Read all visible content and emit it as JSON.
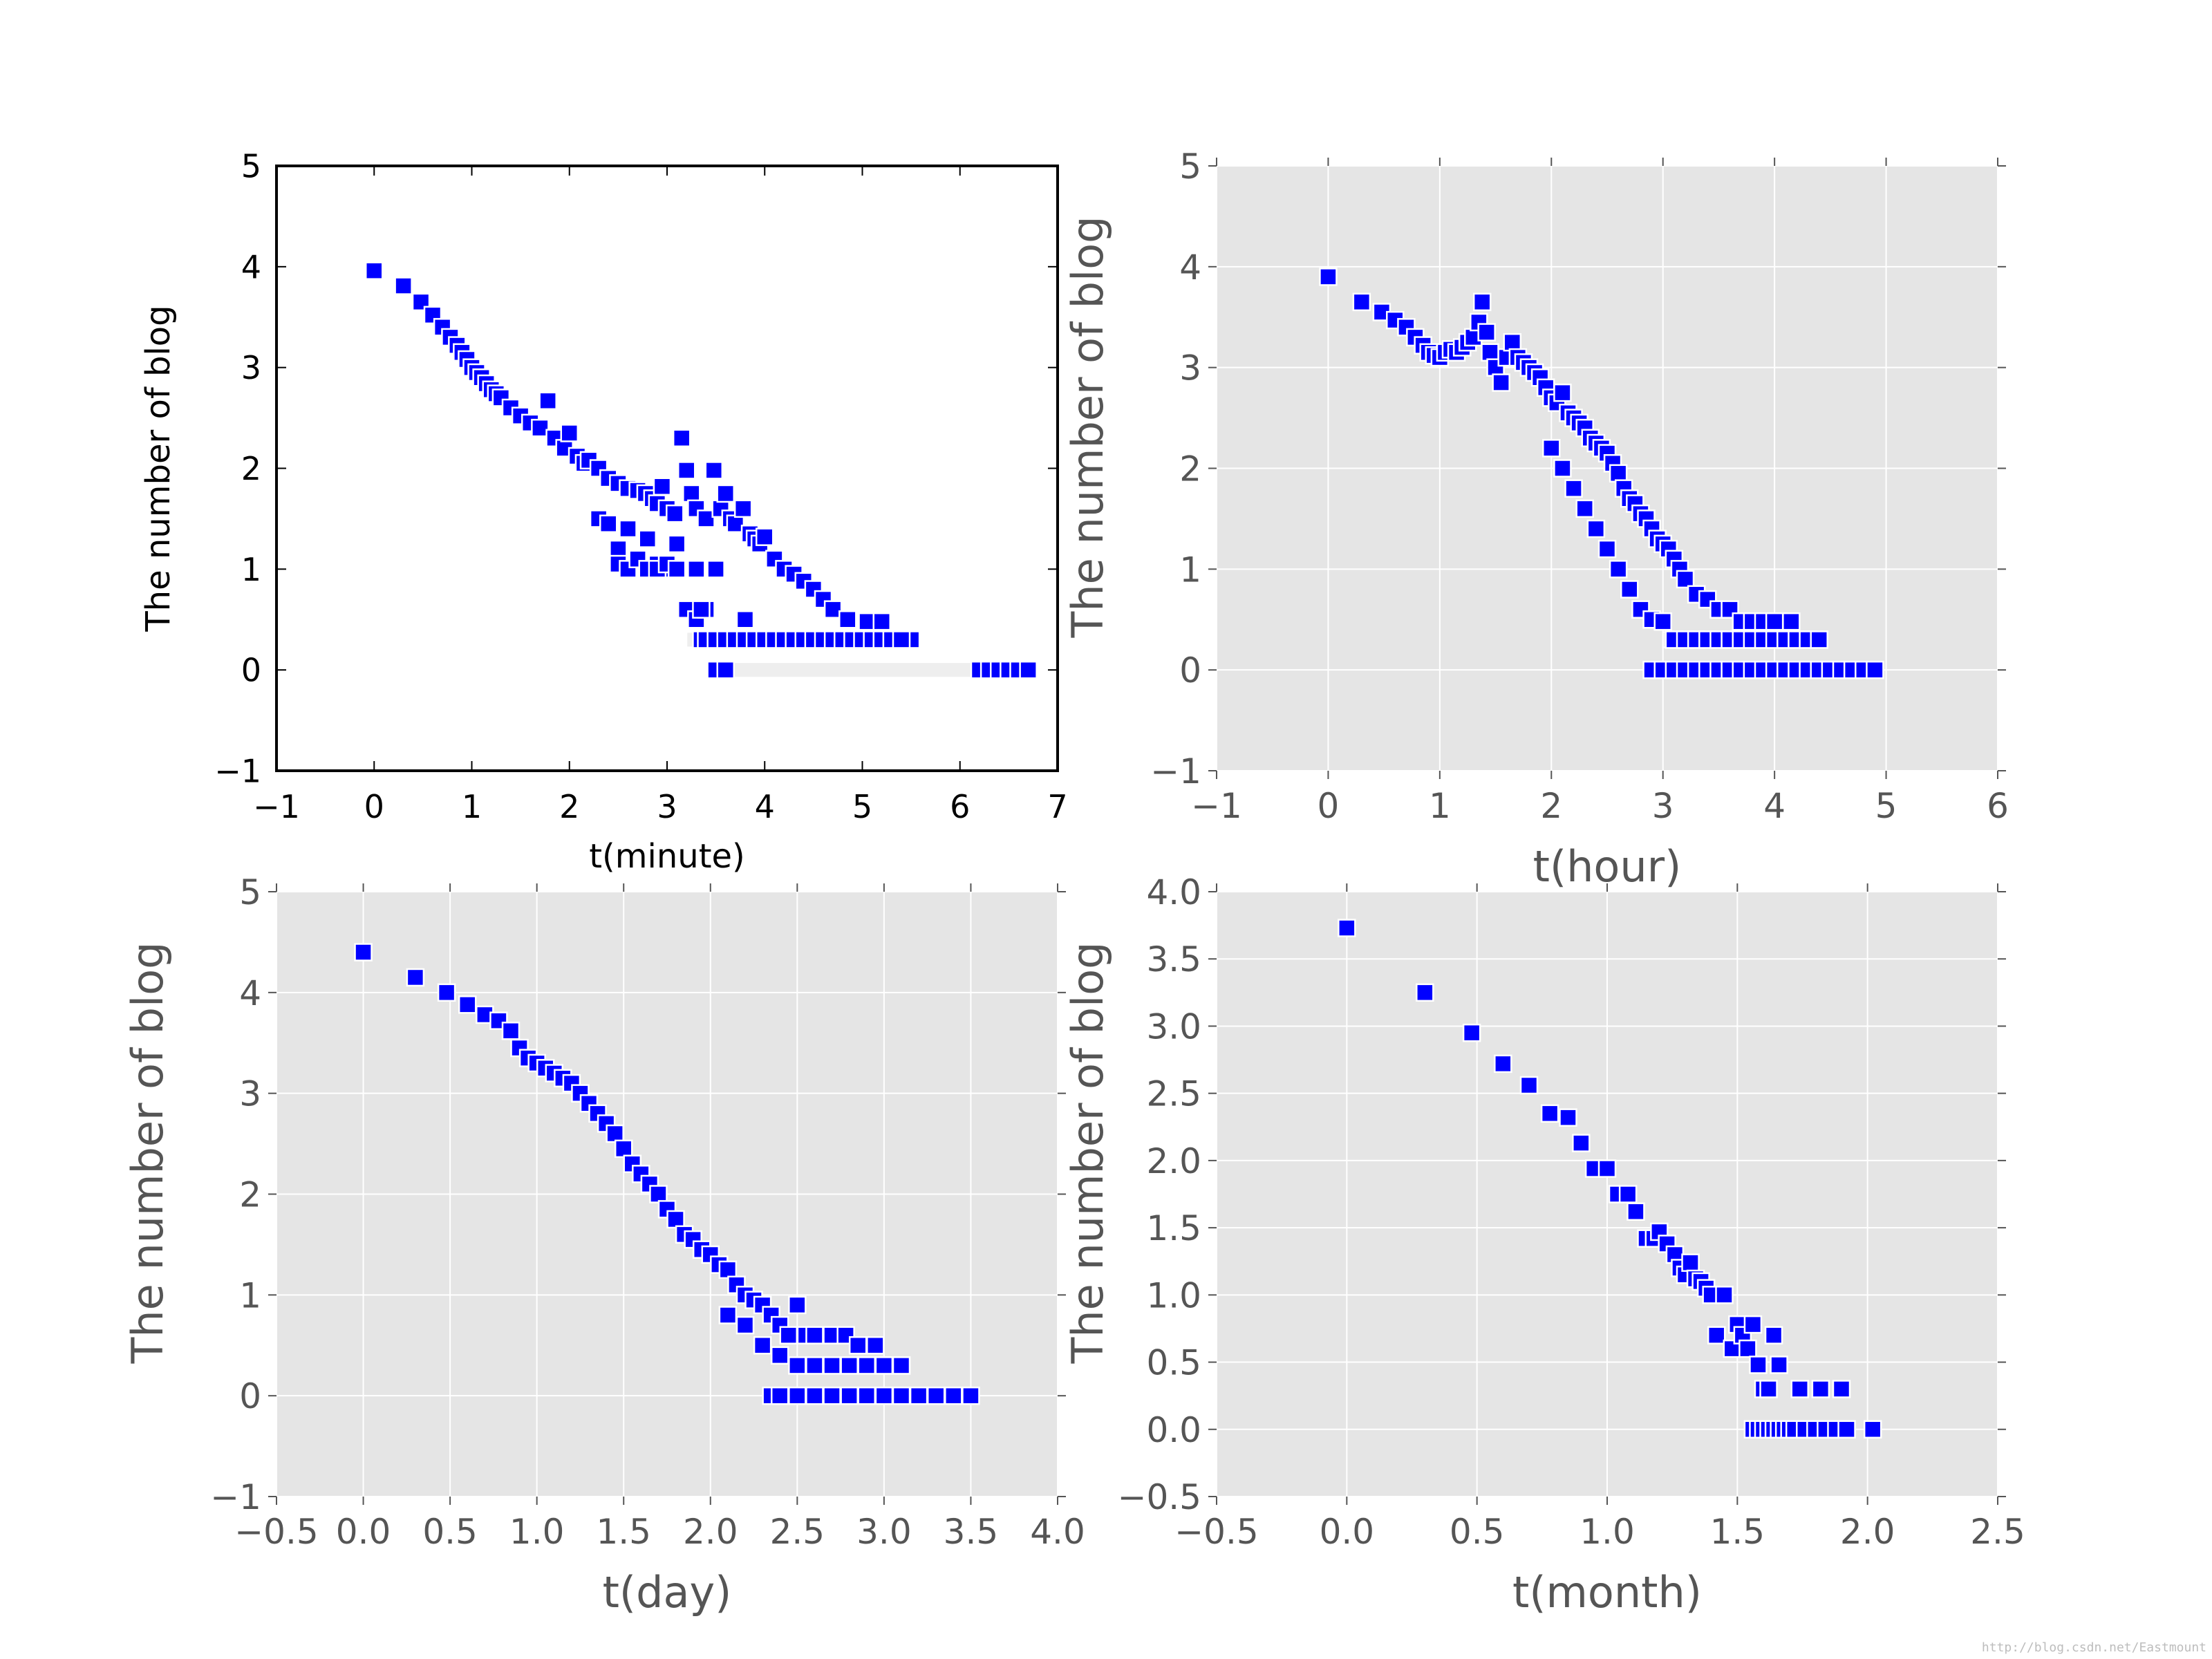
{
  "watermark": "http://blog.csdn.net/Eastmount",
  "colors": {
    "marker": "#0000ff",
    "marker_edge": "#ffffff",
    "ggplot_bg": "#e5e5e5",
    "grid": "#ffffff",
    "tick_text_ggplot": "#555555",
    "tick_text_classic": "#000000"
  },
  "chart_data": [
    {
      "type": "scatter",
      "style": "classic",
      "xlabel": "t(minute)",
      "ylabel": "The number of blog",
      "xlim": [
        -1,
        7
      ],
      "ylim": [
        -1,
        5
      ],
      "xticks": [
        -1,
        0,
        1,
        2,
        3,
        4,
        5,
        6,
        7
      ],
      "xtick_labels": [
        "−1",
        "0",
        "1",
        "2",
        "3",
        "4",
        "5",
        "6",
        "7"
      ],
      "yticks": [
        -1,
        0,
        1,
        2,
        3,
        4,
        5
      ],
      "ytick_labels": [
        "−1",
        "0",
        "1",
        "2",
        "3",
        "4",
        "5"
      ],
      "grid": false,
      "marker": "square",
      "x": [
        0,
        0.3,
        0.48,
        0.6,
        0.7,
        0.78,
        0.85,
        0.9,
        0.95,
        1.0,
        1.05,
        1.1,
        1.15,
        1.2,
        1.25,
        1.3,
        1.4,
        1.5,
        1.6,
        1.7,
        1.78,
        1.85,
        1.95,
        2.0,
        2.08,
        2.15,
        2.2,
        2.3,
        2.4,
        2.5,
        2.6,
        2.7,
        2.78,
        2.85,
        2.9,
        2.95,
        3.0,
        3.08,
        3.15,
        3.2,
        3.25,
        3.3,
        3.4,
        3.48,
        3.55,
        3.6,
        3.65,
        3.7,
        3.78,
        3.85,
        3.9,
        3.95,
        4.0,
        4.1,
        4.2,
        4.3,
        4.4,
        4.5,
        4.6,
        4.7,
        4.85,
        5.05,
        5.2,
        5.35,
        5.5,
        2.3,
        2.5,
        2.6,
        2.7,
        2.8,
        2.9,
        3.0,
        3.1,
        2.4,
        2.5,
        2.6,
        2.7,
        2.8,
        2.9,
        3.0,
        3.1,
        3.2,
        3.3,
        3.35,
        3.4,
        3.45,
        3.5,
        3.6,
        3.7,
        3.8,
        3.9,
        4.0,
        4.1,
        4.2,
        3.3,
        3.35,
        3.4,
        3.5,
        3.6,
        3.7,
        3.8,
        3.9,
        4.0,
        4.1,
        4.2,
        4.3,
        4.4,
        4.5,
        4.6,
        4.7,
        4.8,
        4.9,
        5.0,
        5.1,
        5.2,
        5.3,
        5.4,
        3.5,
        3.6,
        6.2,
        6.3,
        6.4,
        6.5,
        6.6,
        6.7
      ],
      "y": [
        3.96,
        3.81,
        3.65,
        3.52,
        3.4,
        3.3,
        3.22,
        3.15,
        3.08,
        3.0,
        2.95,
        2.9,
        2.84,
        2.78,
        2.74,
        2.7,
        2.6,
        2.52,
        2.45,
        2.4,
        2.67,
        2.3,
        2.2,
        2.35,
        2.12,
        2.05,
        2.08,
        2.0,
        1.9,
        1.85,
        1.8,
        1.78,
        1.75,
        1.7,
        1.65,
        1.82,
        1.6,
        1.55,
        2.3,
        1.98,
        1.75,
        1.6,
        1.5,
        1.98,
        1.6,
        1.75,
        1.5,
        1.45,
        1.6,
        1.35,
        1.3,
        1.25,
        1.32,
        1.1,
        1.0,
        0.95,
        0.88,
        0.8,
        0.7,
        0.6,
        0.5,
        0.48,
        0.48,
        0.3,
        0.3,
        1.5,
        1.2,
        1.4,
        1.1,
        1.3,
        1.05,
        1.0,
        1.25,
        1.45,
        1.05,
        1.0,
        1.1,
        1.0,
        1.0,
        1.05,
        1.0,
        0.6,
        0.5,
        0.3,
        0.6,
        0.3,
        1.0,
        0.3,
        0.3,
        0.5,
        0.3,
        0.3,
        0.3,
        0.3,
        1.0,
        0.6,
        0.3,
        0.3,
        0.3,
        0.3,
        0.3,
        0.3,
        0.3,
        0.3,
        0.3,
        0.3,
        0.3,
        0.3,
        0.3,
        0.3,
        0.3,
        0.3,
        0.3,
        0.3,
        0.3,
        0.3,
        0.3,
        0.0,
        0.0,
        0.0,
        0.0,
        0.0,
        0.0,
        0.0,
        0.0
      ],
      "dense_bands": [
        {
          "x": [
            3.5,
            6.7
          ],
          "y": 0.0
        },
        {
          "x": [
            3.2,
            5.5
          ],
          "y": 0.3
        }
      ]
    },
    {
      "type": "scatter",
      "style": "ggplot",
      "xlabel": "t(hour)",
      "ylabel": "The number of blog",
      "xlim": [
        -1,
        6
      ],
      "ylim": [
        -1,
        5
      ],
      "xticks": [
        -1,
        0,
        1,
        2,
        3,
        4,
        5,
        6
      ],
      "xtick_labels": [
        "−1",
        "0",
        "1",
        "2",
        "3",
        "4",
        "5",
        "6"
      ],
      "yticks": [
        -1,
        0,
        1,
        2,
        3,
        4,
        5
      ],
      "ytick_labels": [
        "−1",
        "0",
        "1",
        "2",
        "3",
        "4",
        "5"
      ],
      "grid": true,
      "marker": "square",
      "x": [
        0,
        0.3,
        0.48,
        0.6,
        0.7,
        0.78,
        0.85,
        0.9,
        0.95,
        1.0,
        1.05,
        1.1,
        1.15,
        1.2,
        1.25,
        1.3,
        1.35,
        1.38,
        1.42,
        1.45,
        1.5,
        1.55,
        1.6,
        1.65,
        1.7,
        1.75,
        1.8,
        1.85,
        1.9,
        1.95,
        2.0,
        2.05,
        2.1,
        2.15,
        2.2,
        2.25,
        2.3,
        2.35,
        2.4,
        2.45,
        2.5,
        2.55,
        2.6,
        2.65,
        2.7,
        2.75,
        2.8,
        2.85,
        2.9,
        2.95,
        3.0,
        3.05,
        3.1,
        3.15,
        3.2,
        3.3,
        3.4,
        3.5,
        3.6,
        3.7,
        3.8,
        3.9,
        4.0,
        4.15,
        4.3,
        2.0,
        2.1,
        2.2,
        2.3,
        2.4,
        2.5,
        2.6,
        2.7,
        2.8,
        2.9,
        3.0,
        3.1,
        3.2,
        3.3,
        3.4,
        3.5,
        3.6,
        3.7,
        3.8,
        3.9,
        4.0,
        4.1,
        4.2,
        4.3,
        4.4,
        2.9,
        3.0,
        3.1,
        3.2,
        3.3,
        3.4,
        3.5,
        3.6,
        3.7,
        3.8,
        3.9,
        4.0,
        4.1,
        4.2,
        4.3,
        4.4,
        4.5,
        4.6,
        4.7,
        4.8,
        4.9
      ],
      "y": [
        3.9,
        3.65,
        3.55,
        3.47,
        3.4,
        3.3,
        3.22,
        3.15,
        3.12,
        3.1,
        3.15,
        3.18,
        3.15,
        3.2,
        3.25,
        3.3,
        3.45,
        3.65,
        3.35,
        3.15,
        3.0,
        2.85,
        3.1,
        3.25,
        3.1,
        3.05,
        3.0,
        2.95,
        2.9,
        2.8,
        2.7,
        2.65,
        2.75,
        2.55,
        2.5,
        2.45,
        2.4,
        2.3,
        2.25,
        2.2,
        2.15,
        2.05,
        1.95,
        1.8,
        1.7,
        1.65,
        1.55,
        1.5,
        1.4,
        1.3,
        1.25,
        1.2,
        1.1,
        1.0,
        0.9,
        0.75,
        0.7,
        0.6,
        0.6,
        0.48,
        0.48,
        0.48,
        0.48,
        0.48,
        0.3,
        2.2,
        2.0,
        1.8,
        1.6,
        1.4,
        1.2,
        1.0,
        0.8,
        0.6,
        0.5,
        0.48,
        0.3,
        0.3,
        0.3,
        0.3,
        0.3,
        0.3,
        0.3,
        0.3,
        0.3,
        0.3,
        0.3,
        0.3,
        0.3,
        0.3,
        0.0,
        0.0,
        0.0,
        0.0,
        0.0,
        0.0,
        0.0,
        0.0,
        0.0,
        0.0,
        0.0,
        0.0,
        0.0,
        0.0,
        0.0,
        0.0,
        0.0,
        0.0,
        0.0,
        0.0,
        0.0
      ],
      "dense_bands": [
        {
          "x": [
            3.0,
            4.9
          ],
          "y": 0.0
        },
        {
          "x": [
            3.0,
            4.4
          ],
          "y": 0.3
        }
      ]
    },
    {
      "type": "scatter",
      "style": "ggplot",
      "xlabel": "t(day)",
      "ylabel": "The number of blog",
      "xlim": [
        -0.5,
        4.0
      ],
      "ylim": [
        -1,
        5
      ],
      "xticks": [
        -0.5,
        0.0,
        0.5,
        1.0,
        1.5,
        2.0,
        2.5,
        3.0,
        3.5,
        4.0
      ],
      "xtick_labels": [
        "−0.5",
        "0.0",
        "0.5",
        "1.0",
        "1.5",
        "2.0",
        "2.5",
        "3.0",
        "3.5",
        "4.0"
      ],
      "yticks": [
        -1,
        0,
        1,
        2,
        3,
        4,
        5
      ],
      "ytick_labels": [
        "−1",
        "0",
        "1",
        "2",
        "3",
        "4",
        "5"
      ],
      "grid": true,
      "marker": "square",
      "x": [
        0,
        0.3,
        0.48,
        0.6,
        0.7,
        0.78,
        0.85,
        0.9,
        0.95,
        1.0,
        1.05,
        1.1,
        1.15,
        1.2,
        1.25,
        1.3,
        1.35,
        1.4,
        1.45,
        1.5,
        1.55,
        1.6,
        1.65,
        1.7,
        1.75,
        1.8,
        1.85,
        1.9,
        1.95,
        2.0,
        2.05,
        2.1,
        2.15,
        2.2,
        2.25,
        2.3,
        2.35,
        2.4,
        2.45,
        2.5,
        2.55,
        2.6,
        2.7,
        2.78,
        2.85,
        2.95,
        3.0,
        3.1,
        2.1,
        2.2,
        2.3,
        2.4,
        2.5,
        2.6,
        2.7,
        2.8,
        2.9,
        3.0,
        3.1,
        2.35,
        2.4,
        2.5,
        2.6,
        2.7,
        2.8,
        2.9,
        3.0,
        3.1,
        3.2,
        3.3,
        3.4,
        3.5
      ],
      "y": [
        4.4,
        4.15,
        4.0,
        3.88,
        3.78,
        3.72,
        3.62,
        3.45,
        3.35,
        3.3,
        3.25,
        3.2,
        3.15,
        3.1,
        3.0,
        2.9,
        2.8,
        2.7,
        2.6,
        2.45,
        2.3,
        2.2,
        2.1,
        2.0,
        1.85,
        1.75,
        1.6,
        1.55,
        1.45,
        1.4,
        1.3,
        1.25,
        1.1,
        1.0,
        0.95,
        0.9,
        0.8,
        0.7,
        0.6,
        0.9,
        0.6,
        0.6,
        0.6,
        0.6,
        0.5,
        0.5,
        0.3,
        0.3,
        0.8,
        0.7,
        0.5,
        0.4,
        0.3,
        0.3,
        0.3,
        0.3,
        0.3,
        0.3,
        0.3,
        0.0,
        0.0,
        0.0,
        0.0,
        0.0,
        0.0,
        0.0,
        0.0,
        0.0,
        0.0,
        0.0,
        0.0,
        0.0
      ],
      "dense_bands": [
        {
          "x": [
            2.35,
            3.5
          ],
          "y": 0.0
        }
      ]
    },
    {
      "type": "scatter",
      "style": "ggplot",
      "xlabel": "t(month)",
      "ylabel": "The number of blog",
      "xlim": [
        -0.5,
        2.5
      ],
      "ylim": [
        -0.5,
        4.0
      ],
      "xticks": [
        -0.5,
        0.0,
        0.5,
        1.0,
        1.5,
        2.0,
        2.5
      ],
      "xtick_labels": [
        "−0.5",
        "0.0",
        "0.5",
        "1.0",
        "1.5",
        "2.0",
        "2.5"
      ],
      "yticks": [
        -0.5,
        0.0,
        0.5,
        1.0,
        1.5,
        2.0,
        2.5,
        3.0,
        3.5,
        4.0
      ],
      "ytick_labels": [
        "−0.5",
        "0.0",
        "0.5",
        "1.0",
        "1.5",
        "2.0",
        "2.5",
        "3.0",
        "3.5",
        "4.0"
      ],
      "grid": true,
      "marker": "square",
      "x": [
        0,
        0.3,
        0.48,
        0.6,
        0.7,
        0.78,
        0.85,
        0.9,
        0.95,
        1.0,
        1.04,
        1.08,
        1.11,
        1.15,
        1.18,
        1.2,
        1.23,
        1.26,
        1.28,
        1.3,
        1.32,
        1.34,
        1.36,
        1.38,
        1.4,
        1.42,
        1.45,
        1.48,
        1.5,
        1.52,
        1.54,
        1.56,
        1.58,
        1.6,
        1.62,
        1.64,
        1.66,
        1.74,
        1.82,
        1.9,
        1.56,
        1.58,
        1.6,
        1.62,
        1.64,
        1.66,
        1.68,
        1.7,
        1.72,
        1.76,
        1.8,
        1.84,
        1.88,
        1.92,
        2.02
      ],
      "y": [
        3.73,
        3.25,
        2.95,
        2.72,
        2.56,
        2.35,
        2.32,
        2.13,
        1.94,
        1.94,
        1.75,
        1.75,
        1.62,
        1.42,
        1.42,
        1.47,
        1.38,
        1.3,
        1.2,
        1.15,
        1.24,
        1.12,
        1.1,
        1.05,
        1.0,
        0.7,
        1.0,
        0.6,
        0.78,
        0.7,
        0.6,
        0.78,
        0.48,
        0.3,
        0.3,
        0.7,
        0.48,
        0.3,
        0.3,
        0.3,
        0.0,
        0.0,
        0.0,
        0.0,
        0.0,
        0.0,
        0.0,
        0.0,
        0.0,
        0.0,
        0.0,
        0.0,
        0.0,
        0.0,
        0.0
      ],
      "dense_bands": []
    }
  ]
}
